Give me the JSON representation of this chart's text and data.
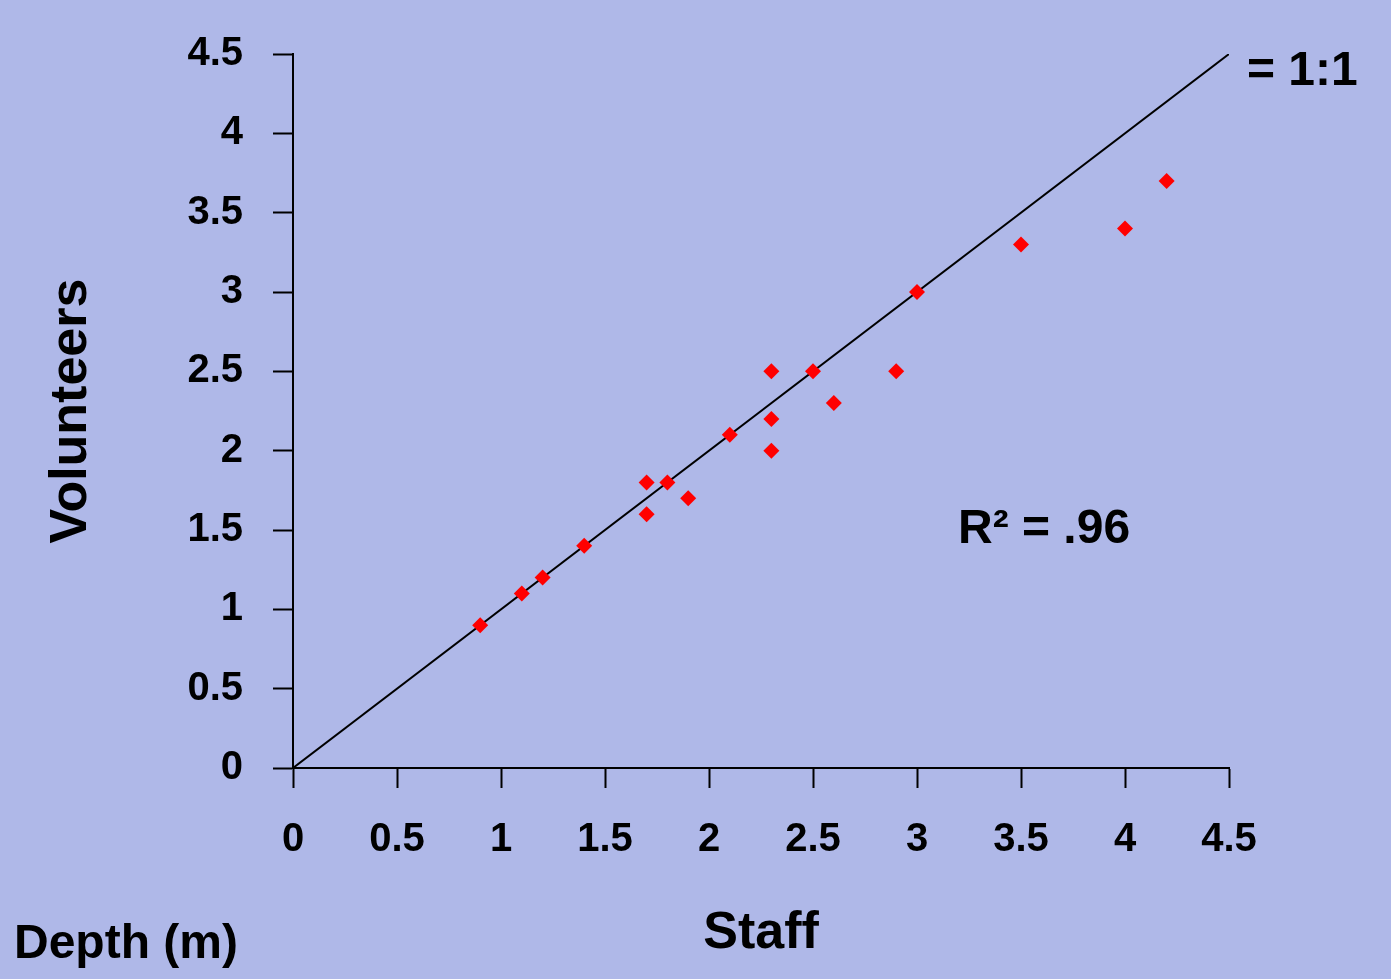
{
  "chart_data": {
    "type": "scatter",
    "xlabel": "Staff",
    "ylabel": "Volunteers",
    "xlim": [
      0,
      4.5
    ],
    "ylim": [
      0,
      4.5
    ],
    "xticks": [
      0,
      0.5,
      1,
      1.5,
      2,
      2.5,
      3,
      3.5,
      4,
      4.5
    ],
    "yticks": [
      0,
      0.5,
      1,
      1.5,
      2,
      2.5,
      3,
      3.5,
      4,
      4.5
    ],
    "grid": false,
    "legend": false,
    "marker": "diamond",
    "series": [
      {
        "type": "scatter",
        "color": "#ff0000",
        "x": [
          0.9,
          1.1,
          1.2,
          1.4,
          1.7,
          1.7,
          1.8,
          1.9,
          2.1,
          2.3,
          2.3,
          2.3,
          2.5,
          2.6,
          2.9,
          3.0,
          3.5,
          4.0,
          4.2
        ],
        "values": [
          0.9,
          1.1,
          1.2,
          1.4,
          1.8,
          1.6,
          1.8,
          1.7,
          2.1,
          2.5,
          2.2,
          2.0,
          2.5,
          2.3,
          2.5,
          3.0,
          3.3,
          3.4,
          3.7
        ]
      },
      {
        "type": "line",
        "name": "= 1:1",
        "color": "#000000",
        "marker": "none",
        "line_style": "solid",
        "x": [
          0,
          4.5
        ],
        "values": [
          0,
          4.5
        ]
      }
    ],
    "annotations": [
      "R² = .96",
      "Depth (m)"
    ]
  }
}
